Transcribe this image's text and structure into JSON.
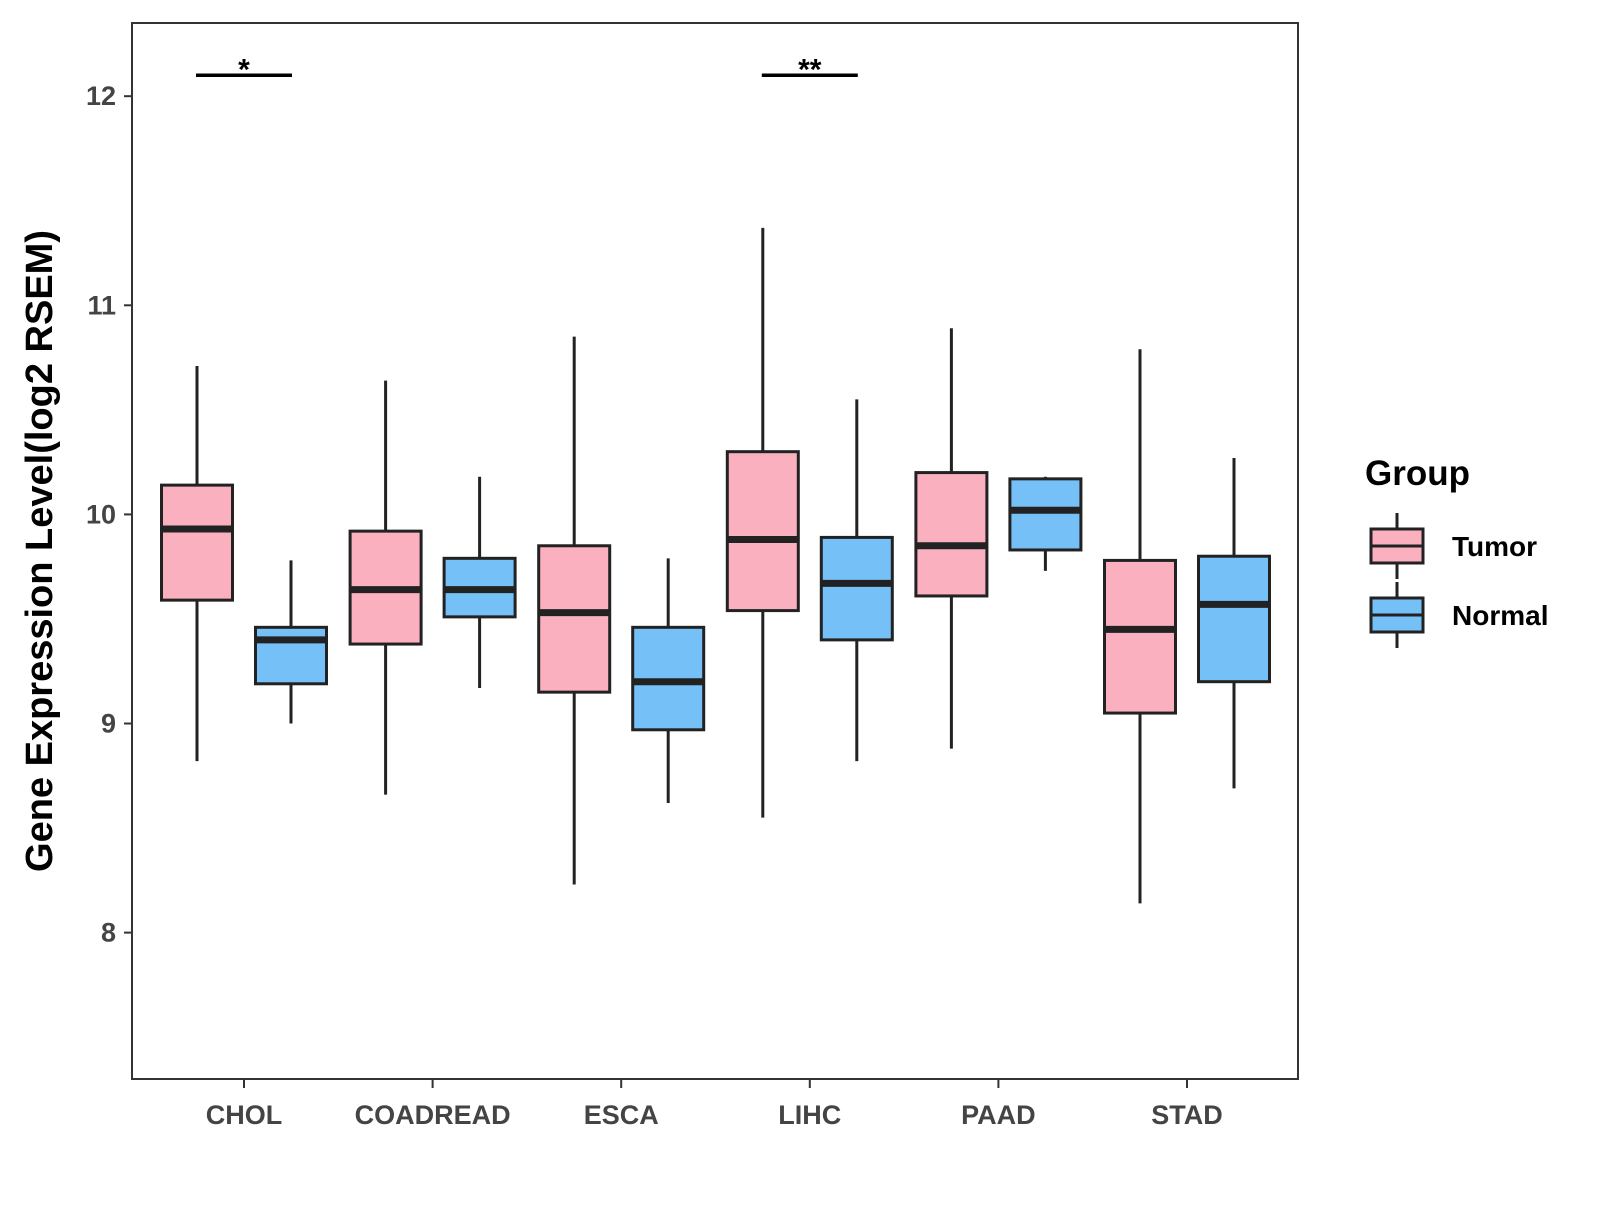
{
  "chart_data": {
    "type": "boxplot",
    "title": "",
    "xlabel": "",
    "ylabel": "Gene Expression Level(log2 RSEM)",
    "ylim": [
      7.3,
      12.35
    ],
    "yticks": [
      8,
      9,
      10,
      11,
      12
    ],
    "ytick_labels": [
      "8",
      "9",
      "10",
      "11",
      "12"
    ],
    "grid": false,
    "categories": [
      "CHOL",
      "COADREAD",
      "ESCA",
      "LIHC",
      "PAAD",
      "STAD"
    ],
    "legend": {
      "title": "Group",
      "position": "right",
      "entries": [
        "Tumor",
        "Normal"
      ]
    },
    "colors": {
      "Tumor": "#FBB0C0",
      "Normal": "#76C0F8",
      "outline": "#222222",
      "axis": "#333333"
    },
    "series": [
      {
        "name": "Tumor",
        "boxes": [
          {
            "whisker_low": 8.82,
            "q1": 9.59,
            "median": 9.93,
            "q3": 10.14,
            "whisker_high": 10.71
          },
          {
            "whisker_low": 8.66,
            "q1": 9.38,
            "median": 9.64,
            "q3": 9.92,
            "whisker_high": 10.64
          },
          {
            "whisker_low": 8.23,
            "q1": 9.15,
            "median": 9.53,
            "q3": 9.85,
            "whisker_high": 10.85
          },
          {
            "whisker_low": 8.55,
            "q1": 9.54,
            "median": 9.88,
            "q3": 10.3,
            "whisker_high": 11.37
          },
          {
            "whisker_low": 8.88,
            "q1": 9.61,
            "median": 9.85,
            "q3": 10.2,
            "whisker_high": 10.89
          },
          {
            "whisker_low": 8.14,
            "q1": 9.05,
            "median": 9.45,
            "q3": 9.78,
            "whisker_high": 10.79
          }
        ]
      },
      {
        "name": "Normal",
        "boxes": [
          {
            "whisker_low": 9.0,
            "q1": 9.19,
            "median": 9.4,
            "q3": 9.46,
            "whisker_high": 9.78
          },
          {
            "whisker_low": 9.17,
            "q1": 9.51,
            "median": 9.64,
            "q3": 9.79,
            "whisker_high": 10.18
          },
          {
            "whisker_low": 8.62,
            "q1": 8.97,
            "median": 9.2,
            "q3": 9.46,
            "whisker_high": 9.79
          },
          {
            "whisker_low": 8.82,
            "q1": 9.4,
            "median": 9.67,
            "q3": 9.89,
            "whisker_high": 10.55
          },
          {
            "whisker_low": 9.73,
            "q1": 9.83,
            "median": 10.02,
            "q3": 10.17,
            "whisker_high": 10.18
          },
          {
            "whisker_low": 8.69,
            "q1": 9.2,
            "median": 9.57,
            "q3": 9.8,
            "whisker_high": 10.27
          }
        ]
      }
    ],
    "annotations": [
      {
        "category": "CHOL",
        "label": "*",
        "y": 12.1
      },
      {
        "category": "LIHC",
        "label": "**",
        "y": 12.1
      }
    ]
  }
}
